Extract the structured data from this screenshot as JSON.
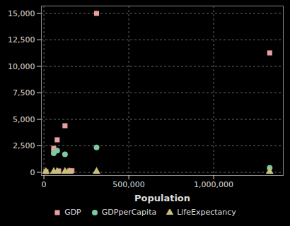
{
  "chart_data": {
    "type": "scatter",
    "x_label": "Population",
    "xlim": [
      -15000,
      1410000
    ],
    "xticks": [
      0,
      {
        "value": 500000,
        "label": "500,000"
      },
      {
        "value": 1000000,
        "label": "1,000,000"
      }
    ],
    "ylim": [
      -300,
      15700
    ],
    "yticks": [
      0,
      {
        "value": 2500,
        "label": "2,500"
      },
      {
        "value": 5000,
        "label": "5,000"
      },
      {
        "value": 7500,
        "label": "7,500"
      },
      {
        "value": 10000,
        "label": "10,000"
      },
      {
        "value": 12500,
        "label": "12,500"
      },
      {
        "value": 15000,
        "label": "15,000"
      }
    ],
    "grid": true,
    "legend": "bottom",
    "series": [
      {
        "name": "GDP",
        "color": "#e8a0a0",
        "marker": "square",
        "x": [
          12000,
          58000,
          58000,
          78000,
          87000,
          124000,
          150000,
          165000,
          310000,
          1330000
        ],
        "values": [
          70,
          2000,
          2270,
          3070,
          130,
          4400,
          130,
          150,
          15000,
          11270
        ]
      },
      {
        "name": "GDPperCapita",
        "color": "#7fc8a0",
        "marker": "circle",
        "x": [
          58000,
          78000,
          124000,
          310000,
          1330000
        ],
        "values": [
          1800,
          2050,
          1700,
          2350,
          420
        ]
      },
      {
        "name": "LifeExpectancy",
        "color": "#c8c078",
        "marker": "triangle",
        "x": [
          12000,
          58000,
          78000,
          124000,
          150000,
          310000,
          1330000
        ],
        "values": [
          75,
          80,
          80,
          79,
          70,
          78,
          73
        ]
      }
    ]
  }
}
